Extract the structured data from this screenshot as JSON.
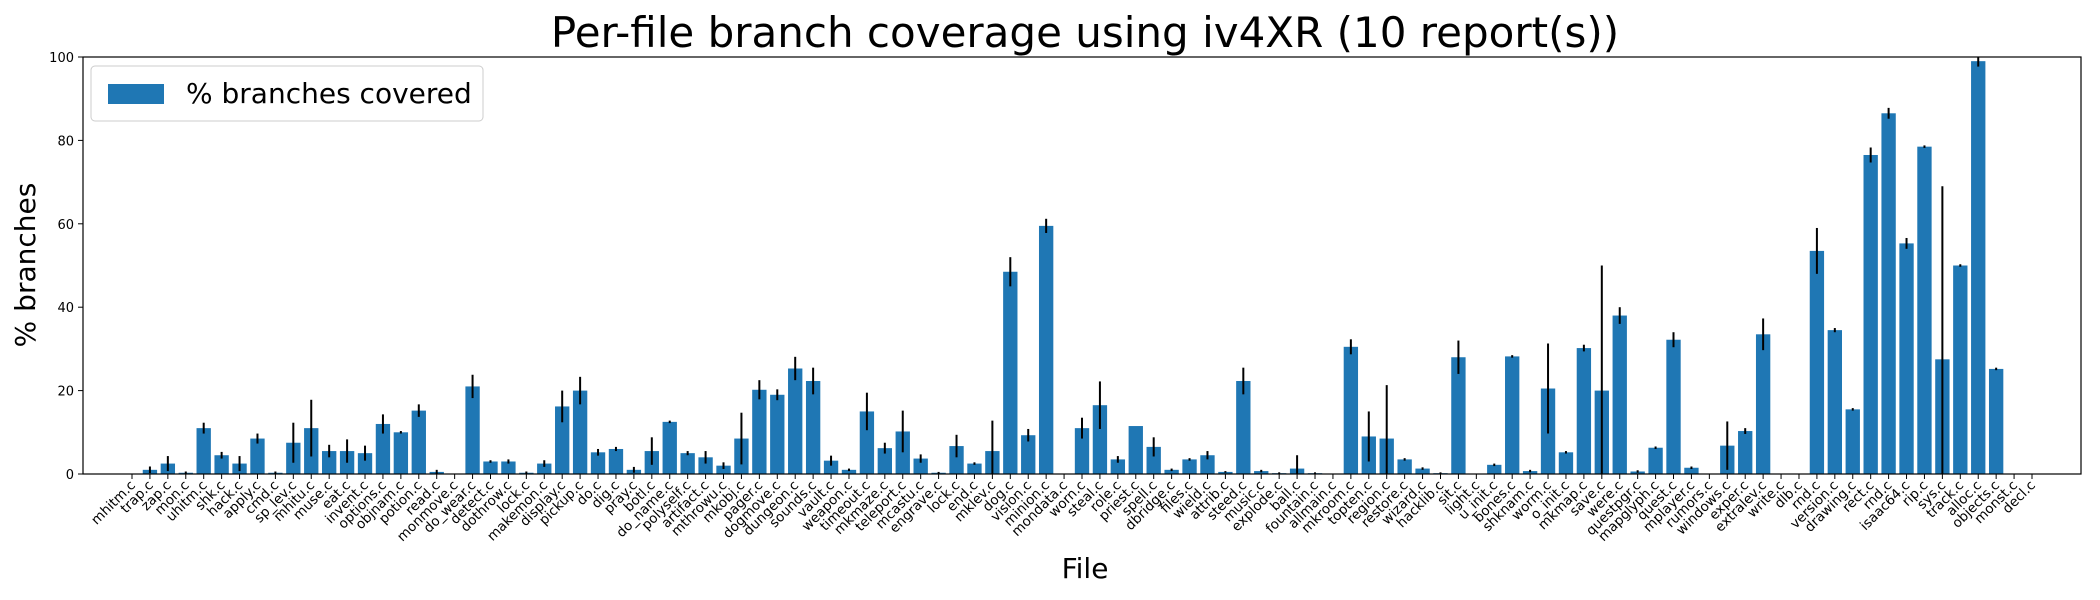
{
  "chart_data": {
    "type": "bar",
    "title": "Per-file branch coverage using iv4XR (10 report(s))",
    "xlabel": "File",
    "ylabel": "% branches",
    "ylim": [
      0,
      100
    ],
    "yticks": [
      "0",
      "20",
      "40",
      "60",
      "80",
      "100"
    ],
    "legend": {
      "label": "% branches covered",
      "placement": "top-left"
    },
    "colors": {
      "bar": "#1f77b4",
      "error": "#000000"
    },
    "categories": [
      "mhitm.c",
      "trap.c",
      "zap.c",
      "mon.c",
      "uhitm.c",
      "shk.c",
      "hack.c",
      "apply.c",
      "cmd.c",
      "sp_lev.c",
      "mhitu.c",
      "muse.c",
      "eat.c",
      "invent.c",
      "options.c",
      "objnam.c",
      "potion.c",
      "read.c",
      "monmove.c",
      "do_wear.c",
      "detect.c",
      "dothrow.c",
      "lock.c",
      "makemon.c",
      "display.c",
      "pickup.c",
      "do.c",
      "dig.c",
      "pray.c",
      "botl.c",
      "do_name.c",
      "polyself.c",
      "artifact.c",
      "mthrowu.c",
      "mkobj.c",
      "pager.c",
      "dogmove.c",
      "dungeon.c",
      "sounds.c",
      "vault.c",
      "weapon.c",
      "timeout.c",
      "mkmaze.c",
      "teleport.c",
      "mcastu.c",
      "engrave.c",
      "lock.c",
      "end.c",
      "mklev.c",
      "dog.c",
      "vision.c",
      "minion.c",
      "mondata.c",
      "worn.c",
      "steal.c",
      "role.c",
      "priest.c",
      "spell.c",
      "dbridge.c",
      "files.c",
      "wield.c",
      "attrib.c",
      "steed.c",
      "music.c",
      "explode.c",
      "ball.c",
      "fountain.c",
      "allmain.c",
      "mkroom.c",
      "topten.c",
      "region.c",
      "restore.c",
      "wizard.c",
      "hacklib.c",
      "sit.c",
      "light.c",
      "u_init.c",
      "bones.c",
      "shknam.c",
      "worm.c",
      "o_init.c",
      "mkmap.c",
      "save.c",
      "were.c",
      "questpgr.c",
      "mapglyph.c",
      "quest.c",
      "mplayer.c",
      "rumors.c",
      "windows.c",
      "exper.c",
      "extralev.c",
      "write.c",
      "dlb.c",
      "rnd.c",
      "version.c",
      "drawing.c",
      "rect.c",
      "rnd.c",
      "isaac64.c",
      "rip.c",
      "sys.c",
      "track.c",
      "alloc.c",
      "objects.c",
      "monst.c",
      "decl.c"
    ],
    "values": [
      0,
      1,
      2.5,
      0.3,
      11,
      4.5,
      2.5,
      8.5,
      0.3,
      7.5,
      11,
      5.5,
      5.5,
      5,
      12,
      10,
      15.2,
      0.5,
      0,
      21,
      3,
      3,
      0.3,
      2.5,
      16.2,
      20,
      5.2,
      6,
      1,
      5.5,
      12.5,
      5,
      4,
      2,
      8.5,
      20.2,
      19,
      25.3,
      22.3,
      3.2,
      1,
      15,
      6.2,
      10.2,
      3.7,
      0.3,
      6.7,
      2.5,
      5.5,
      48.5,
      9.3,
      59.5,
      0,
      11,
      16.5,
      3.5,
      11.5,
      6.5,
      1,
      3.5,
      4.5,
      0.5,
      22.3,
      0.7,
      0.2,
      1.3,
      0.2,
      0,
      30.5,
      9,
      8.5,
      3.5,
      1.3,
      0.2,
      28,
      0,
      2.2,
      28.2,
      0.7,
      20.5,
      5.2,
      30.2,
      20,
      38,
      0.6,
      6.3,
      32.2,
      1.5,
      0,
      6.8,
      10.3,
      33.5,
      0,
      0,
      53.5,
      34.5,
      15.5,
      76.5,
      86.5,
      55.3,
      78.5,
      27.5,
      50,
      99,
      25.2,
      0,
      0
    ],
    "errors": [
      0,
      0.8,
      1.8,
      0.3,
      1.3,
      0.8,
      1.8,
      1.2,
      0.3,
      4.8,
      6.8,
      1.5,
      2.8,
      1.8,
      2.3,
      0.3,
      1.5,
      0.5,
      0,
      2.8,
      0.3,
      0.5,
      0.3,
      0.8,
      3.8,
      3.3,
      0.8,
      0.5,
      0.7,
      3.3,
      0.3,
      0.5,
      1.5,
      0.8,
      6.2,
      2.3,
      1.3,
      2.8,
      3.2,
      1.2,
      0.3,
      4.5,
      1.3,
      5,
      1,
      0.2,
      2.7,
      0.3,
      7.3,
      3.5,
      1.5,
      1.7,
      0,
      2.5,
      5.7,
      0.8,
      0,
      2.3,
      0.3,
      0.3,
      1,
      0.2,
      3.2,
      0.3,
      0.2,
      3.2,
      0.2,
      0,
      1.8,
      6,
      12.8,
      0.3,
      0.3,
      0.2,
      4,
      0,
      0.3,
      0.3,
      0.3,
      10.8,
      0.3,
      0.8,
      30,
      2,
      0.3,
      0.3,
      1.8,
      0.3,
      0,
      5.8,
      0.7,
      3.8,
      0,
      0,
      5.5,
      0.5,
      0.3,
      1.8,
      1.3,
      1.3,
      0.3,
      41.5,
      0.3,
      1.3,
      0.3,
      0,
      0
    ]
  }
}
